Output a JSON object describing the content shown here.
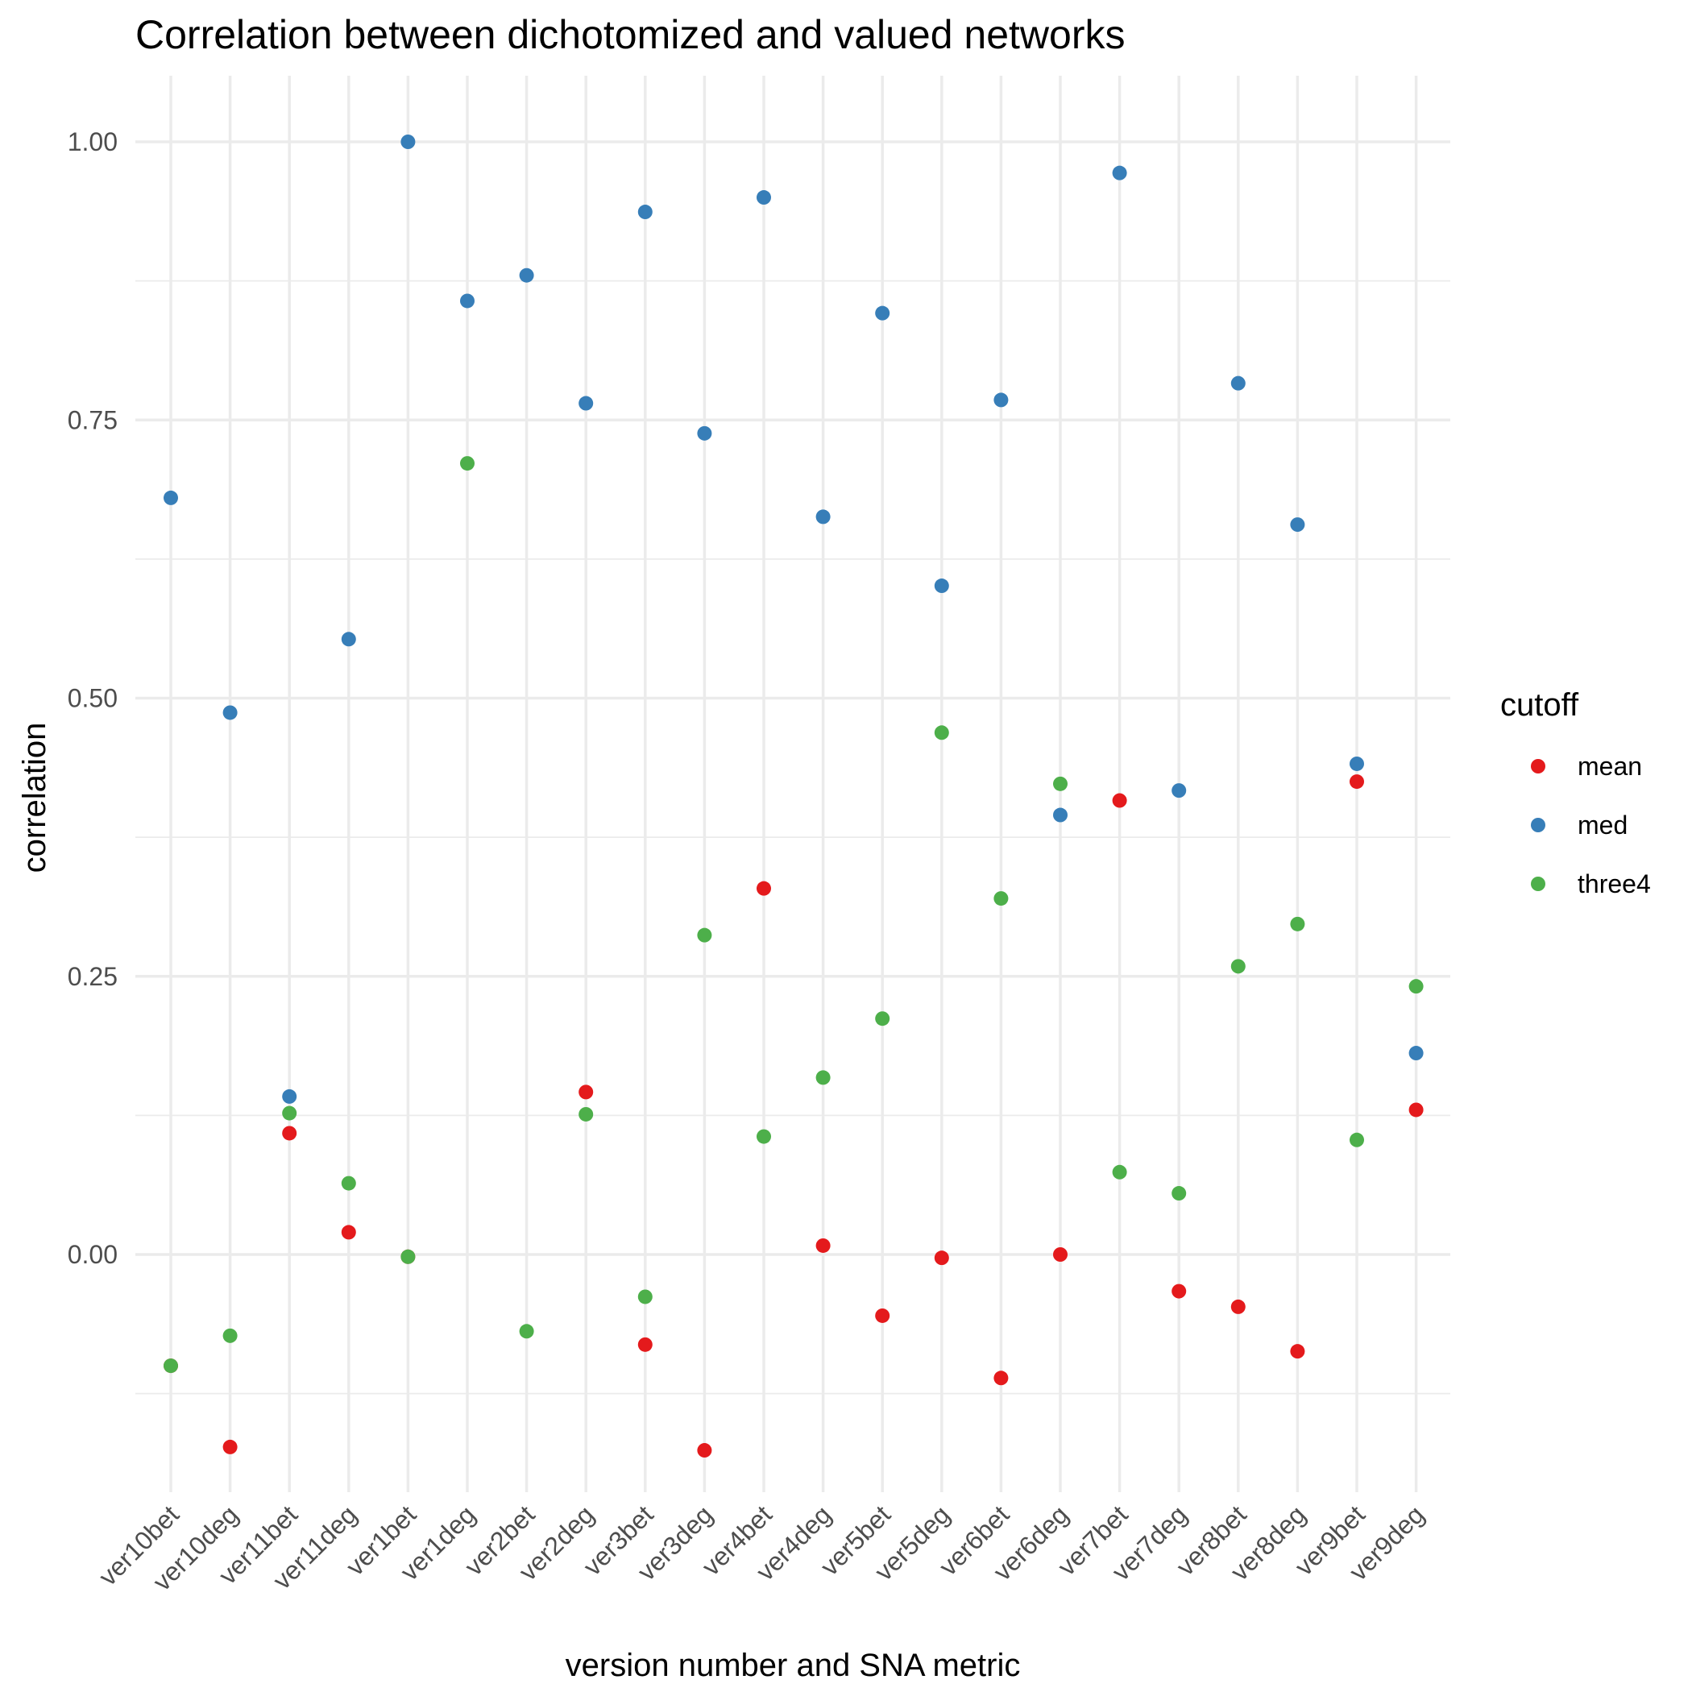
{
  "chart_data": {
    "type": "scatter",
    "title": "Correlation between dichotomized and valued networks",
    "xlabel": "version number and SNA metric",
    "ylabel": "correlation",
    "categories": [
      "ver10bet",
      "ver10deg",
      "ver11bet",
      "ver11deg",
      "ver1bet",
      "ver1deg",
      "ver2bet",
      "ver2deg",
      "ver3bet",
      "ver3deg",
      "ver4bet",
      "ver4deg",
      "ver5bet",
      "ver5deg",
      "ver6bet",
      "ver6deg",
      "ver7bet",
      "ver7deg",
      "ver8bet",
      "ver8deg",
      "ver9bet",
      "ver9deg"
    ],
    "ylim": [
      -0.215,
      1.055
    ],
    "y_ticks": [
      0.0,
      0.25,
      0.5,
      0.75,
      1.0
    ],
    "y_tick_labels": [
      "0.00",
      "0.25",
      "0.50",
      "0.75",
      "1.00"
    ],
    "grid": true,
    "legend": {
      "title": "cutoff",
      "position": "right"
    },
    "series": [
      {
        "name": "mean",
        "color": "#e41a1c",
        "values": [
          -0.1,
          -0.173,
          0.109,
          0.02,
          -0.002,
          null,
          null,
          0.146,
          -0.081,
          -0.176,
          0.329,
          0.008,
          -0.055,
          -0.003,
          -0.111,
          0.0,
          0.408,
          -0.033,
          -0.047,
          -0.087,
          0.425,
          0.13
        ]
      },
      {
        "name": "med",
        "color": "#377eb8",
        "values": [
          0.68,
          0.487,
          0.142,
          0.553,
          1.0,
          0.857,
          0.88,
          0.765,
          0.937,
          0.738,
          0.95,
          0.663,
          0.846,
          0.601,
          0.768,
          0.395,
          0.972,
          0.417,
          0.783,
          0.656,
          0.441,
          0.181
        ]
      },
      {
        "name": "three4",
        "color": "#4daf4a",
        "values": [
          -0.1,
          -0.073,
          0.127,
          0.064,
          -0.002,
          0.711,
          -0.069,
          0.126,
          -0.038,
          0.287,
          0.106,
          0.159,
          0.212,
          0.469,
          0.32,
          0.423,
          0.074,
          0.055,
          0.259,
          0.297,
          0.103,
          0.241
        ]
      }
    ]
  }
}
